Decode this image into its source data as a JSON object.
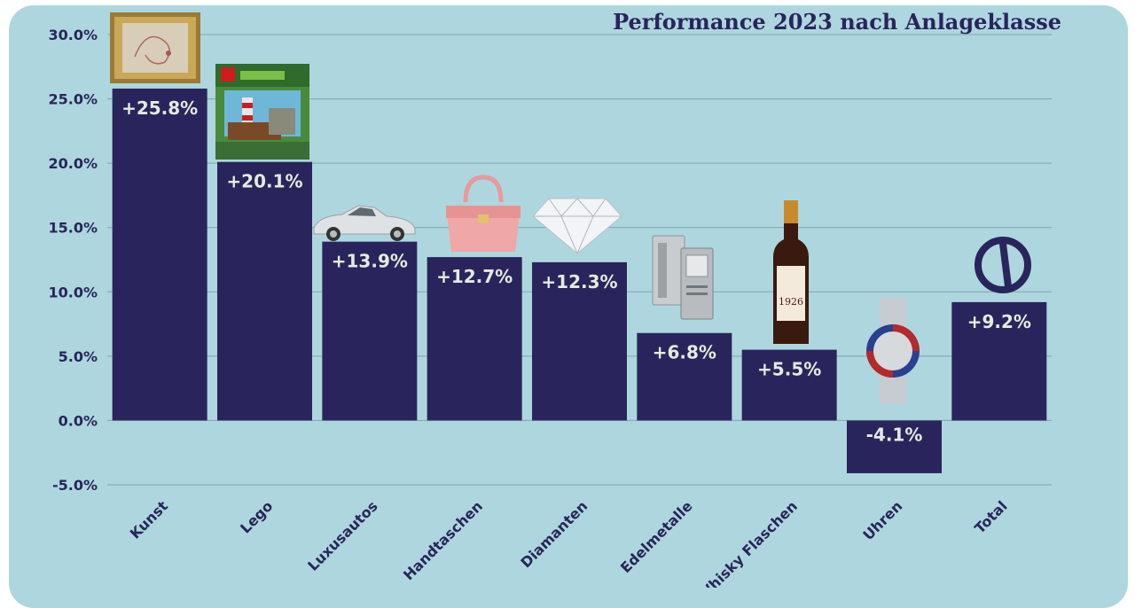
{
  "chart_data": {
    "type": "bar",
    "title": "Performance 2023 nach Anlageklasse",
    "categories": [
      "Kunst",
      "Lego",
      "Luxusautos",
      "Handtaschen",
      "Diamanten",
      "Edelmetalle",
      "Whisky Flaschen",
      "Uhren",
      "Total"
    ],
    "values": [
      25.8,
      20.1,
      13.9,
      12.7,
      12.3,
      6.8,
      5.5,
      -4.1,
      9.2
    ],
    "data_labels": [
      "+25.8%",
      "+20.1%",
      "+13.9%",
      "+12.7%",
      "+12.3%",
      "+6.8%",
      "+5.5%",
      "-4.1%",
      "+9.2%"
    ],
    "yticks": [
      30,
      25,
      20,
      15,
      10,
      5,
      0,
      -5
    ],
    "ytick_labels": [
      "30.0%",
      "25.0%",
      "20.0%",
      "15.0%",
      "10.0%",
      "5.0%",
      "0.0%",
      "-5.0%"
    ],
    "ylim": [
      -5,
      30
    ],
    "grid": true,
    "icons": [
      "framed-painting-icon",
      "lego-set-icon",
      "convertible-car-icon",
      "handbag-icon",
      "diamond-icon",
      "precious-metal-bars-icon",
      "whisky-bottle-icon",
      "wristwatch-icon",
      "logo-icon"
    ],
    "whisky_label_year": "1926",
    "colors": {
      "bar": "#29255c",
      "background": "#aed6de",
      "grid": "#7fa5b1",
      "label": "#e4ebe0",
      "text": "#29255c"
    }
  }
}
